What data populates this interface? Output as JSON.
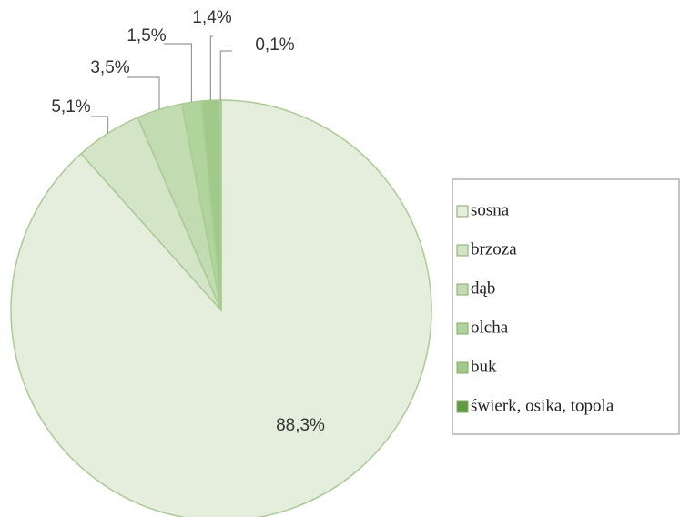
{
  "chart_data": {
    "type": "pie",
    "categories": [
      "sosna",
      "brzoza",
      "dąb",
      "olcha",
      "buk",
      "świerk, osika, topola"
    ],
    "values": [
      88.3,
      5.1,
      3.5,
      1.5,
      1.4,
      0.1
    ],
    "value_labels": [
      "88,3%",
      "5,1%",
      "3,5%",
      "1,5%",
      "1,4%",
      "0,1%"
    ],
    "colors": [
      "#e5eedd",
      "#d4e4c7",
      "#c3dbb0",
      "#b1d39c",
      "#a0c98a",
      "#5f9c40"
    ],
    "legend": "right"
  }
}
